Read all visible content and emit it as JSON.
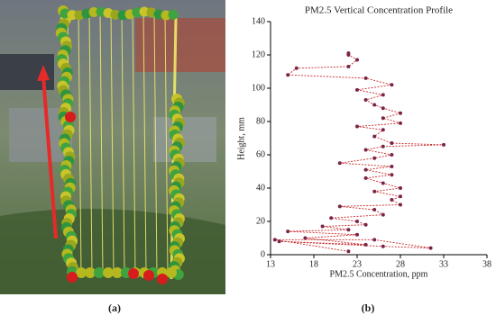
{
  "chart_data": {
    "type": "scatter",
    "title": "PM2.5 Vertical Concentration Profile",
    "x_label": "PM2.5 Concentration, ppm",
    "y_label": "Height, mm",
    "x": [
      22,
      13.5,
      25,
      31.5,
      26,
      14,
      24,
      17,
      23,
      15,
      22,
      19,
      24,
      23,
      20,
      26,
      25,
      21,
      28,
      27,
      28,
      25,
      28,
      26,
      24,
      27,
      24,
      27,
      21,
      25,
      27,
      24,
      26,
      33,
      27,
      25,
      26,
      23,
      28,
      26,
      28,
      26,
      25,
      24,
      26,
      23,
      27,
      24,
      15,
      16,
      22,
      23,
      22,
      22
    ],
    "values": [
      2,
      9,
      9,
      4,
      5,
      8,
      6,
      10,
      12,
      14,
      15,
      17,
      18,
      20,
      22,
      24,
      27,
      29,
      30,
      33,
      35,
      38,
      40,
      43,
      46,
      48,
      51,
      53,
      55,
      58,
      60,
      63,
      65,
      66,
      67,
      71,
      75,
      77,
      79,
      82,
      85,
      88,
      90,
      93,
      96,
      99,
      102,
      106,
      108,
      112,
      113,
      117,
      120,
      121
    ],
    "color": "#7a2448",
    "line_color": "#c62828",
    "line_style": "dashed",
    "xlim": [
      13,
      38
    ],
    "xticks": [
      13,
      18,
      23,
      28,
      33,
      38
    ],
    "ylim": [
      0,
      140
    ],
    "yticks": [
      0,
      20,
      40,
      60,
      80,
      100,
      120,
      140
    ],
    "grid": false
  },
  "panel_labels": [
    "(a)",
    "(b)"
  ]
}
